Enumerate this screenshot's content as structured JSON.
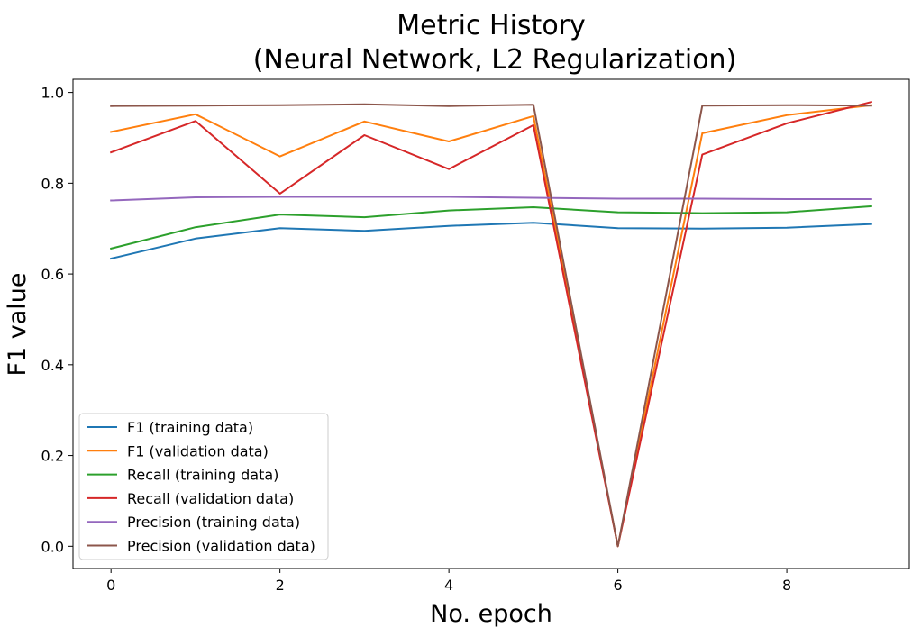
{
  "chart_data": {
    "type": "line",
    "title_line1": "Metric History",
    "title_line2": "(Neural Network, L2 Regularization)",
    "xlabel": "No. epoch",
    "ylabel": "F1 value",
    "xlim": [
      -0.45,
      9.45
    ],
    "ylim": [
      -0.049,
      1.029
    ],
    "xticks": [
      0,
      2,
      4,
      6,
      8
    ],
    "xtick_labels": [
      "0",
      "2",
      "4",
      "6",
      "8"
    ],
    "yticks": [
      0.0,
      0.2,
      0.4,
      0.6,
      0.8,
      1.0
    ],
    "ytick_labels": [
      "0.0",
      "0.2",
      "0.4",
      "0.6",
      "0.8",
      "1.0"
    ],
    "grid": false,
    "legend_position": "lower-left",
    "x": [
      0,
      1,
      2,
      3,
      4,
      5,
      6,
      7,
      8,
      9
    ],
    "series": [
      {
        "name": "F1 (training data)",
        "color": "#1f77b4",
        "values": [
          0.634,
          0.678,
          0.701,
          0.695,
          0.706,
          0.713,
          0.701,
          0.7,
          0.702,
          0.71
        ]
      },
      {
        "name": "F1 (validation data)",
        "color": "#ff7f0e",
        "values": [
          0.913,
          0.952,
          0.859,
          0.936,
          0.892,
          0.948,
          0.0,
          0.91,
          0.95,
          0.972
        ]
      },
      {
        "name": "Recall (training data)",
        "color": "#2ca02c",
        "values": [
          0.656,
          0.703,
          0.731,
          0.725,
          0.74,
          0.747,
          0.736,
          0.734,
          0.736,
          0.749
        ]
      },
      {
        "name": "Recall (validation data)",
        "color": "#d62728",
        "values": [
          0.868,
          0.937,
          0.777,
          0.906,
          0.831,
          0.928,
          0.0,
          0.863,
          0.932,
          0.979
        ]
      },
      {
        "name": "Precision (training data)",
        "color": "#9467bd",
        "values": [
          0.762,
          0.769,
          0.77,
          0.77,
          0.77,
          0.768,
          0.766,
          0.766,
          0.765,
          0.765
        ]
      },
      {
        "name": "Precision (validation data)",
        "color": "#8c564b",
        "values": [
          0.97,
          0.971,
          0.972,
          0.974,
          0.97,
          0.973,
          0.0,
          0.971,
          0.972,
          0.971
        ]
      }
    ]
  }
}
